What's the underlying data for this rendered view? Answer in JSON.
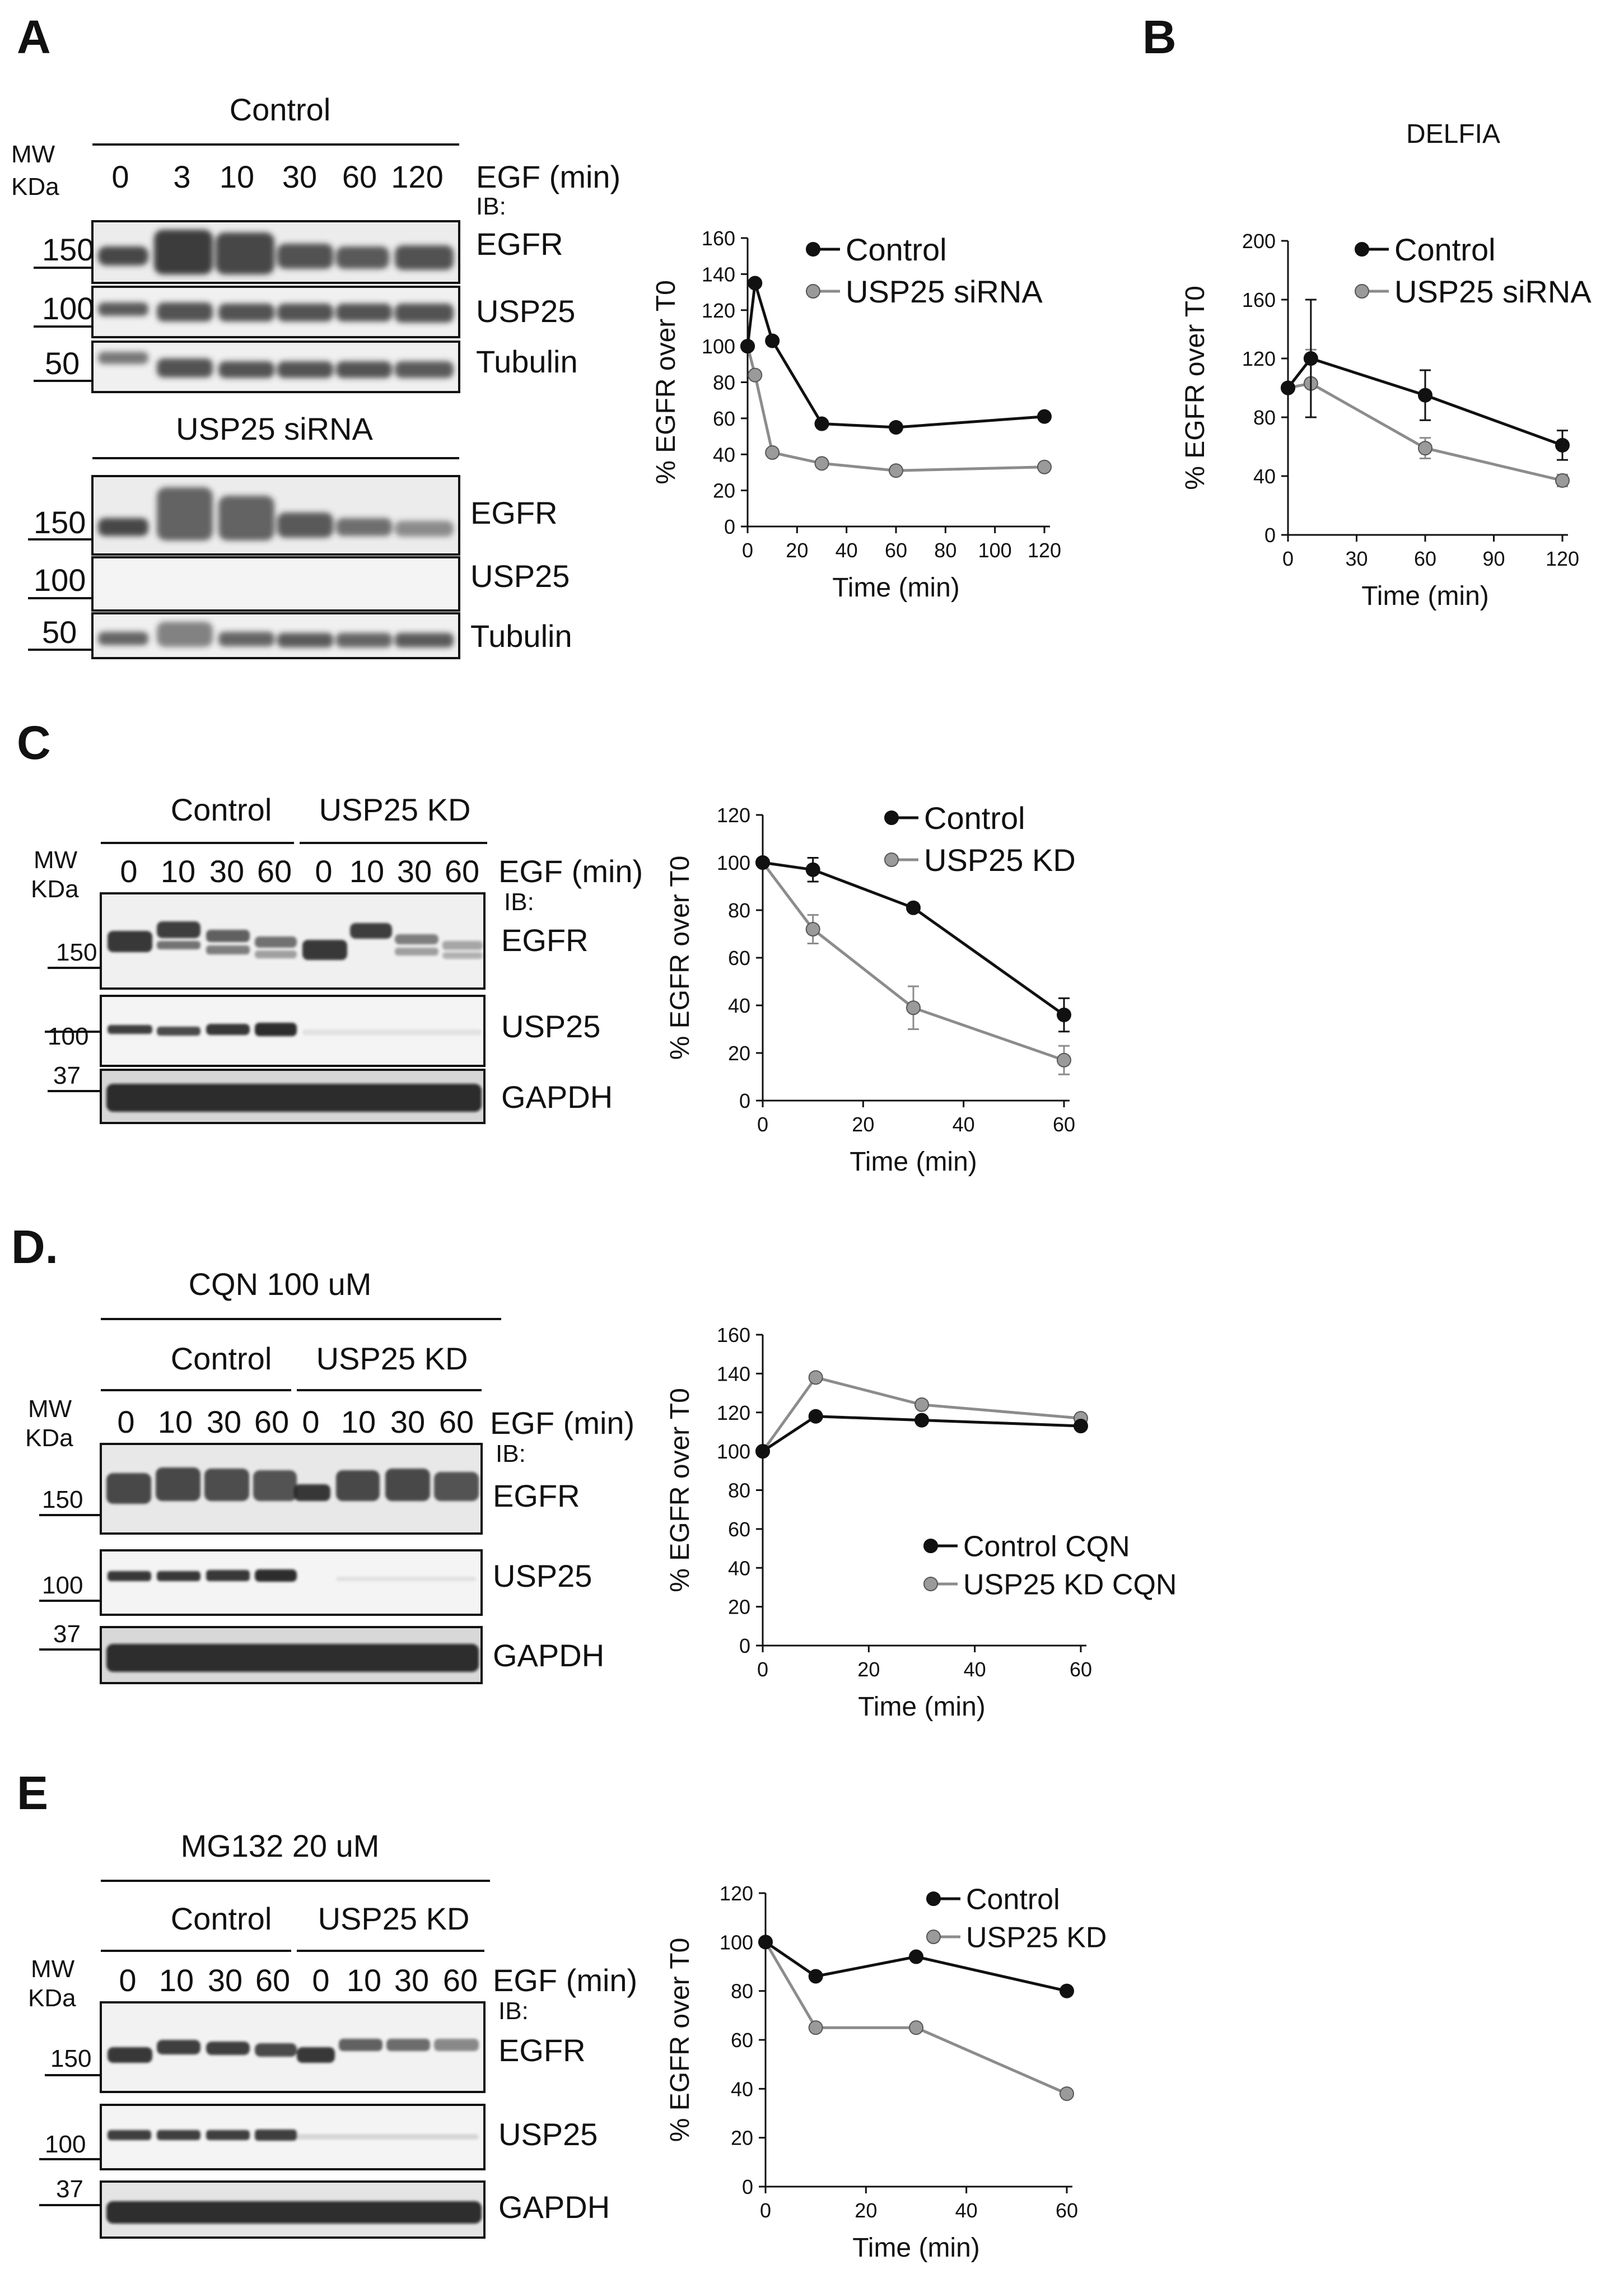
{
  "panels": {
    "A": {
      "letter": "A",
      "blot_top": {
        "condition": "Control",
        "mw_label": [
          "MW",
          "KDa"
        ],
        "treatment": "EGF (min)",
        "ib_label": "IB:",
        "lanes": [
          "0",
          "3",
          "10",
          "30",
          "60",
          "120"
        ],
        "markers": [
          "150",
          "100",
          "50"
        ],
        "targets": [
          "EGFR",
          "USP25",
          "Tubulin"
        ]
      },
      "blot_bottom": {
        "condition": "USP25 siRNA",
        "markers": [
          "150",
          "100",
          "50"
        ],
        "targets": [
          "EGFR",
          "USP25",
          "Tubulin"
        ]
      }
    },
    "B": {
      "letter": "B"
    },
    "C": {
      "letter": "C",
      "groups": [
        "Control",
        "USP25 KD"
      ],
      "mw_label": [
        "MW",
        "KDa"
      ],
      "treatment": "EGF (min)",
      "ib_label": "IB:",
      "lanes": [
        "0",
        "10",
        "30",
        "60",
        "0",
        "10",
        "30",
        "60"
      ],
      "markers": [
        "150",
        "100",
        "37"
      ],
      "targets": [
        "EGFR",
        "USP25",
        "GAPDH"
      ]
    },
    "D": {
      "letter": "D.",
      "drug": "CQN 100 uM",
      "groups": [
        "Control",
        "USP25 KD"
      ],
      "mw_label": [
        "MW",
        "KDa"
      ],
      "treatment": "EGF (min)",
      "ib_label": "IB:",
      "lanes": [
        "0",
        "10",
        "30",
        "60",
        "0",
        "10",
        "30",
        "60"
      ],
      "markers": [
        "150",
        "100",
        "37"
      ],
      "targets": [
        "EGFR",
        "USP25",
        "GAPDH"
      ]
    },
    "E": {
      "letter": "E",
      "drug": "MG132 20 uM",
      "groups": [
        "Control",
        "USP25 KD"
      ],
      "mw_label": [
        "MW",
        "KDa"
      ],
      "treatment": "EGF (min)",
      "ib_label": "IB:",
      "lanes": [
        "0",
        "10",
        "30",
        "60",
        "0",
        "10",
        "30",
        "60"
      ],
      "markers": [
        "150",
        "100",
        "37"
      ],
      "targets": [
        "EGFR",
        "USP25",
        "GAPDH"
      ]
    }
  },
  "colors": {
    "control": "#111111",
    "knockdown": "#8c8c8c",
    "knockdown_fill": "#9a9a9a"
  },
  "chart_data": [
    {
      "id": "A",
      "type": "line",
      "title": "",
      "xlabel": "Time (min)",
      "ylabel": "% EGFR over T0",
      "xlim": [
        0,
        120
      ],
      "ylim": [
        0,
        160
      ],
      "xticks": [
        0,
        20,
        40,
        60,
        80,
        100,
        120
      ],
      "yticks": [
        0,
        20,
        40,
        60,
        80,
        100,
        120,
        140,
        160
      ],
      "legend": "top-right",
      "series": [
        {
          "name": "Control",
          "x": [
            0,
            3,
            10,
            30,
            60,
            120
          ],
          "y": [
            100,
            135,
            103,
            57,
            55,
            61
          ]
        },
        {
          "name": "USP25 siRNA",
          "x": [
            0,
            3,
            10,
            30,
            60,
            120
          ],
          "y": [
            100,
            84,
            41,
            35,
            31,
            33
          ]
        }
      ]
    },
    {
      "id": "B",
      "type": "line",
      "title": "DELFIA",
      "xlabel": "Time (min)",
      "ylabel": "% EGFR over T0",
      "xlim": [
        0,
        120
      ],
      "ylim": [
        0,
        200
      ],
      "xticks": [
        0,
        30,
        60,
        90,
        120
      ],
      "yticks": [
        0,
        40,
        80,
        120,
        160,
        200
      ],
      "legend": "top-right",
      "series": [
        {
          "name": "Control",
          "x": [
            0,
            10,
            60,
            120
          ],
          "y": [
            100,
            120,
            95,
            61
          ],
          "err": [
            0,
            40,
            17,
            10
          ]
        },
        {
          "name": "USP25 siRNA",
          "x": [
            0,
            10,
            60,
            120
          ],
          "y": [
            100,
            103,
            59,
            37
          ],
          "err": [
            0,
            23,
            7,
            4
          ]
        }
      ]
    },
    {
      "id": "C",
      "type": "line",
      "title": "",
      "xlabel": "Time (min)",
      "ylabel": "% EGFR over T0",
      "xlim": [
        0,
        60
      ],
      "ylim": [
        0,
        120
      ],
      "xticks": [
        0,
        20,
        40,
        60
      ],
      "yticks": [
        0,
        20,
        40,
        60,
        80,
        100,
        120
      ],
      "legend": "top-right",
      "series": [
        {
          "name": "Control",
          "x": [
            0,
            10,
            30,
            60
          ],
          "y": [
            100,
            97,
            81,
            36
          ],
          "err": [
            0,
            5,
            0,
            7
          ]
        },
        {
          "name": "USP25 KD",
          "x": [
            0,
            10,
            30,
            60
          ],
          "y": [
            100,
            72,
            39,
            17
          ],
          "err": [
            0,
            6,
            9,
            6
          ]
        }
      ]
    },
    {
      "id": "D",
      "type": "line",
      "title": "",
      "xlabel": "Time (min)",
      "ylabel": "% EGFR over T0",
      "xlim": [
        0,
        60
      ],
      "ylim": [
        0,
        160
      ],
      "xticks": [
        0,
        20,
        40,
        60
      ],
      "yticks": [
        0,
        20,
        40,
        60,
        80,
        100,
        120,
        140,
        160
      ],
      "legend": "center-right",
      "series": [
        {
          "name": "Control CQN",
          "x": [
            0,
            10,
            30,
            60
          ],
          "y": [
            100,
            118,
            116,
            113
          ]
        },
        {
          "name": "USP25 KD CQN",
          "x": [
            0,
            10,
            30,
            60
          ],
          "y": [
            100,
            138,
            124,
            117
          ]
        }
      ]
    },
    {
      "id": "E",
      "type": "line",
      "title": "",
      "xlabel": "Time (min)",
      "ylabel": "% EGFR over T0",
      "xlim": [
        0,
        60
      ],
      "ylim": [
        0,
        120
      ],
      "xticks": [
        0,
        20,
        40,
        60
      ],
      "yticks": [
        0,
        20,
        40,
        60,
        80,
        100,
        120
      ],
      "legend": "top-right",
      "series": [
        {
          "name": "Control",
          "x": [
            0,
            10,
            30,
            60
          ],
          "y": [
            100,
            86,
            94,
            80
          ]
        },
        {
          "name": "USP25 KD",
          "x": [
            0,
            10,
            30,
            60
          ],
          "y": [
            100,
            65,
            65,
            38
          ]
        }
      ]
    }
  ]
}
